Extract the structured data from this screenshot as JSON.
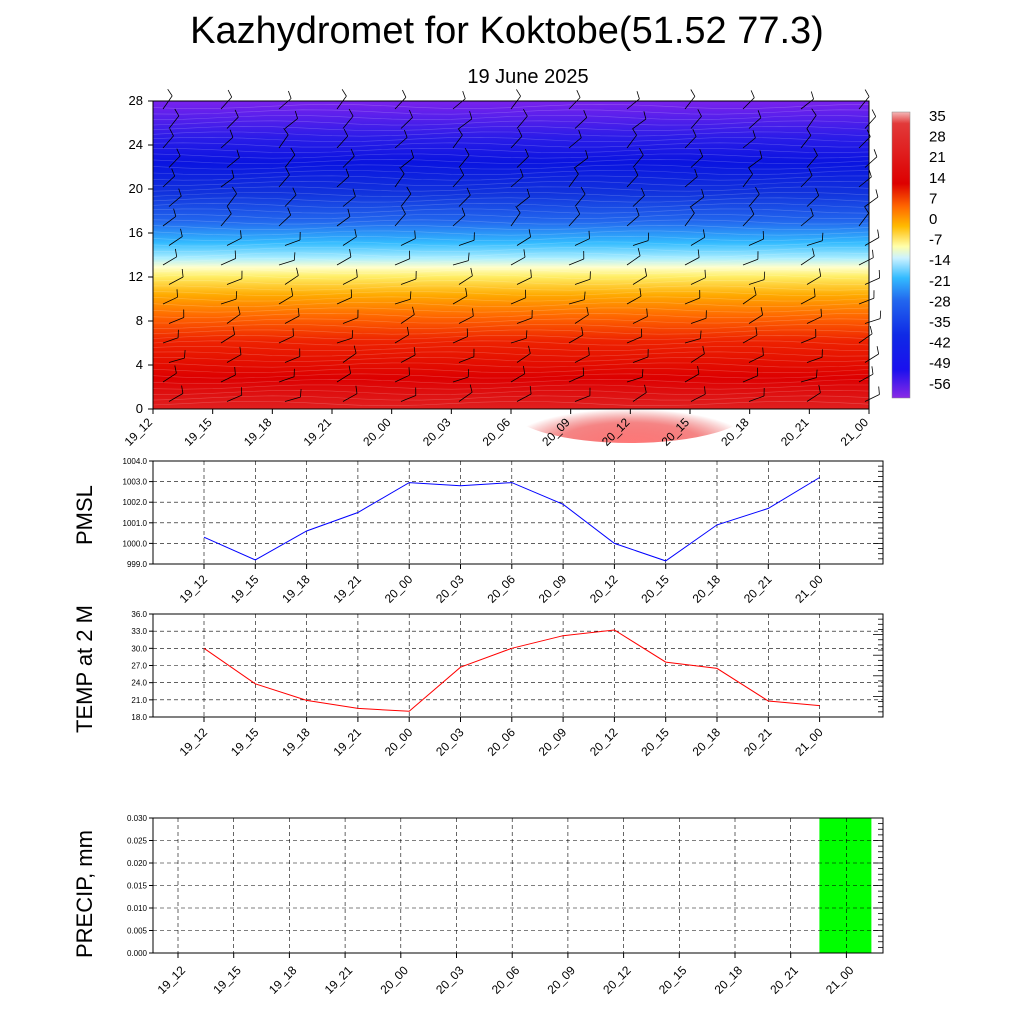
{
  "title": "Kazhydromet for Koktobe(51.52 77.3)",
  "subtitle": "19 June 2025",
  "time_labels": [
    "19_12",
    "19_15",
    "19_18",
    "19_21",
    "20_00",
    "20_03",
    "20_06",
    "20_09",
    "20_12",
    "20_15",
    "20_18",
    "20_21",
    "21_00"
  ],
  "colorbar": {
    "labels": [
      "35",
      "28",
      "21",
      "14",
      "7",
      "0",
      "-7",
      "-14",
      "-21",
      "-28",
      "-35",
      "-42",
      "-49",
      "-56"
    ]
  },
  "chart_data": [
    {
      "type": "heatmap",
      "name": "cross-section",
      "ylabel": "",
      "yticks": [
        0,
        4,
        8,
        12,
        16,
        20,
        24,
        28
      ],
      "ylim": [
        0,
        28
      ],
      "value_range": [
        -60,
        38
      ],
      "note_rows": [
        {
          "level": 0,
          "value": 30
        },
        {
          "level": 2,
          "value": 28
        },
        {
          "level": 4,
          "value": 24
        },
        {
          "level": 6,
          "value": 18
        },
        {
          "level": 8,
          "value": 10
        },
        {
          "level": 10,
          "value": 3
        },
        {
          "level": 12,
          "value": -6
        },
        {
          "level": 13,
          "value": -12
        },
        {
          "level": 14,
          "value": -20
        },
        {
          "level": 16,
          "value": -33
        },
        {
          "level": 18,
          "value": -44
        },
        {
          "level": 20,
          "value": -52
        },
        {
          "level": 22,
          "value": -55
        },
        {
          "level": 24,
          "value": -57
        },
        {
          "level": 26,
          "value": -60
        },
        {
          "level": 28,
          "value": -62
        }
      ]
    },
    {
      "type": "line",
      "name": "PMSL",
      "ylabel": "PMSL",
      "ylim": [
        999.0,
        1004.0
      ],
      "yticks": [
        "999.0",
        "1000.0",
        "1001.0",
        "1002.0",
        "1003.0",
        "1004.0"
      ],
      "color": "#0000ff",
      "values": [
        1000.3,
        999.2,
        1000.6,
        1001.5,
        1002.95,
        1002.8,
        1002.95,
        1001.9,
        1000.0,
        999.15,
        1000.9,
        1001.7,
        1003.2
      ]
    },
    {
      "type": "line",
      "name": "TEMP at 2 M",
      "ylabel": "TEMP at 2 M",
      "ylim": [
        18.0,
        36.0
      ],
      "yticks": [
        "18.0",
        "21.0",
        "24.0",
        "27.0",
        "30.0",
        "33.0",
        "36.0"
      ],
      "color": "#ff0000",
      "values": [
        30.0,
        23.8,
        20.9,
        19.5,
        19.0,
        26.7,
        30.0,
        32.2,
        33.2,
        27.6,
        26.5,
        20.8,
        20.0
      ]
    },
    {
      "type": "bar",
      "name": "PRECIP, mm",
      "ylabel": "PRECIP, mm",
      "ylim": [
        0,
        0.03
      ],
      "yticks": [
        "0.000",
        "0.005",
        "0.010",
        "0.015",
        "0.020",
        "0.025",
        "0.030"
      ],
      "color": "#00ff00",
      "values": [
        0,
        0,
        0,
        0,
        0,
        0,
        0,
        0,
        0,
        0,
        0,
        0,
        0.03
      ]
    }
  ]
}
